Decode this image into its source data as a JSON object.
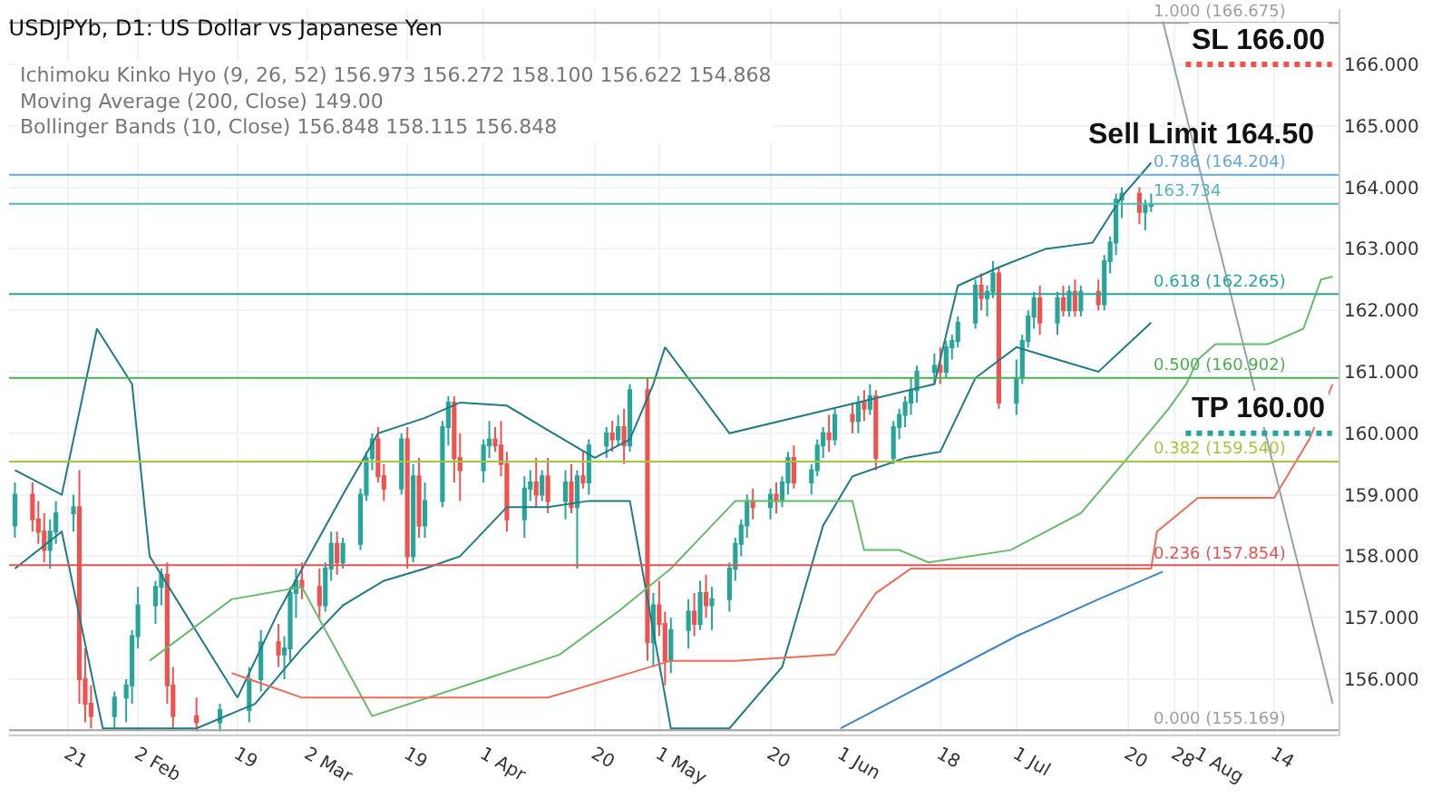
{
  "chart_data": {
    "type": "candlestick",
    "title": "USDJPYb, D1: US Dollar vs Japanese Yen",
    "subtitle": "Ichimoku Kinko Hyo (9, 26, 52) 156.973 156.272 158.100 156.622 154.868\nMoving Average (200, Close) 149.00\nBollinger Bands (10, Close) 156.848 158.115 156.848",
    "annotations": [
      "Sell Limit 164.50"
    ],
    "xlim": [
      "--01-11",
      "--08-25"
    ],
    "xticks": [
      {
        "value": "--01-21",
        "label": "21"
      },
      {
        "value": "--02-02",
        "label": "2 Feb"
      },
      {
        "value": "--02-19",
        "label": "19"
      },
      {
        "value": "--03-02",
        "label": "2 Mar"
      },
      {
        "value": "--03-19",
        "label": "19"
      },
      {
        "value": "--04-01",
        "label": "1 Apr"
      },
      {
        "value": "--04-20",
        "label": "20"
      },
      {
        "value": "--05-01",
        "label": "1 May"
      },
      {
        "value": "--05-20",
        "label": "20"
      },
      {
        "value": "--06-01",
        "label": "1 Jun"
      },
      {
        "value": "--06-18",
        "label": "18"
      },
      {
        "value": "--07-01",
        "label": "1 Jul"
      },
      {
        "value": "--07-20",
        "label": "20"
      },
      {
        "value": "--07-28",
        "label": "28"
      },
      {
        "value": "--08-01",
        "label": "1 Aug"
      },
      {
        "value": "--08-14",
        "label": "14"
      }
    ],
    "ylim": [
      155.1,
      166.9
    ],
    "yticks": [
      {
        "value": 156,
        "label": "156.000"
      },
      {
        "value": 157,
        "label": "157.000"
      },
      {
        "value": 158,
        "label": "158.000"
      },
      {
        "value": 159,
        "label": "159.000"
      },
      {
        "value": 160,
        "label": "160.000"
      },
      {
        "value": 161,
        "label": "161.000"
      },
      {
        "value": 162,
        "label": "162.000"
      },
      {
        "value": 163,
        "label": "163.000"
      },
      {
        "value": 164,
        "label": "164.000"
      },
      {
        "value": 165,
        "label": "165.000"
      },
      {
        "value": 166,
        "label": "166.000"
      }
    ],
    "grid": true,
    "ref_lines": [
      {
        "axis": "y",
        "value": 166.675,
        "label": "1.000 (166.675)",
        "color": "#9e9e9e"
      },
      {
        "axis": "y",
        "value": 164.204,
        "label": "0.786 (164.204)",
        "color": "#64a8d8"
      },
      {
        "axis": "y",
        "value": 162.265,
        "label": "0.618 (162.265)",
        "color": "#26a69a"
      },
      {
        "axis": "y",
        "value": 160.902,
        "label": "0.500 (160.902)",
        "color": "#4caf50"
      },
      {
        "axis": "y",
        "value": 159.54,
        "label": "0.382 (159.540)",
        "color": "#a5c63b"
      },
      {
        "axis": "y",
        "value": 157.854,
        "label": "0.236 (157.854)",
        "color": "#e05555"
      },
      {
        "axis": "y",
        "value": 155.169,
        "label": "0.000 (155.169)",
        "color": "#9e9e9e"
      },
      {
        "axis": "y",
        "value": 163.734,
        "label": "163.734",
        "color": "#4fb8b0"
      },
      {
        "axis": "y",
        "value": 166.0,
        "label": "SL 166.00",
        "color": "#ef5350",
        "line_style": "dotted"
      },
      {
        "axis": "y",
        "value": 160.0,
        "label": "TP 160.00",
        "color": "#26a69a",
        "line_style": "dotted"
      }
    ],
    "series": [
      {
        "type": "line",
        "color": "#1e7b84",
        "x": [
          "--01-12",
          "--01-20",
          "--01-26",
          "--02-01",
          "--02-04",
          "--02-19",
          "--02-26",
          "--03-08",
          "--03-14",
          "--03-22",
          "--03-28",
          "--04-05",
          "--04-12",
          "--04-20",
          "--04-26",
          "--04-30",
          "--05-02",
          "--05-13",
          "--06-17",
          "--06-21",
          "--06-28",
          "--07-06",
          "--07-14",
          "--07-19",
          "--07-24"
        ],
        "values": [
          159.4,
          159.0,
          161.7,
          160.8,
          158.0,
          155.7,
          157.1,
          159.0,
          160.0,
          160.25,
          160.5,
          160.45,
          160.05,
          159.6,
          159.9,
          160.8,
          161.4,
          160.0,
          160.8,
          162.4,
          162.7,
          163.0,
          163.1,
          163.85,
          164.4
        ]
      },
      {
        "type": "line",
        "color": "#1e7b84",
        "x": [
          "--01-12",
          "--01-20",
          "--01-27",
          "--02-12",
          "--02-22",
          "--03-01",
          "--03-08",
          "--03-15",
          "--03-22",
          "--03-28",
          "--04-05",
          "--04-12",
          "--04-19",
          "--04-26",
          "--05-03",
          "--05-13",
          "--05-22",
          "--05-29",
          "--06-03",
          "--06-12",
          "--06-18",
          "--06-24",
          "--07-01",
          "--07-08",
          "--07-15",
          "--07-24"
        ],
        "values": [
          157.8,
          158.4,
          155.2,
          155.2,
          155.6,
          156.5,
          157.2,
          157.6,
          157.8,
          158.0,
          158.8,
          158.8,
          158.9,
          158.9,
          155.2,
          155.2,
          156.2,
          158.5,
          159.3,
          159.6,
          159.7,
          160.9,
          161.4,
          161.2,
          161.0,
          161.8
        ]
      },
      {
        "type": "line",
        "color": "#66bb6a",
        "x": [
          "--02-04",
          "--02-18",
          "--03-01",
          "--03-13",
          "--04-14",
          "--04-24",
          "--05-03",
          "--05-14",
          "--06-03",
          "--06-05",
          "--06-11",
          "--06-16",
          "--06-30",
          "--07-12",
          "--07-20",
          "--07-27",
          "--07-30",
          "--08-01",
          "--08-04",
          "--08-13",
          "--08-19",
          "--08-22",
          "--08-24"
        ],
        "values": [
          156.3,
          157.3,
          157.5,
          155.4,
          156.4,
          157.1,
          157.8,
          158.9,
          158.9,
          158.1,
          158.1,
          157.9,
          158.1,
          158.7,
          159.6,
          160.4,
          160.8,
          161.2,
          161.45,
          161.45,
          161.7,
          162.5,
          162.55
        ]
      },
      {
        "type": "line",
        "color": "#ef6c5a",
        "x": [
          "--02-18",
          "--03-01",
          "--04-12",
          "--05-03",
          "--05-14",
          "--05-31",
          "--06-07",
          "--06-13",
          "--07-24",
          "--07-25",
          "--08-01",
          "--08-14",
          "--08-20",
          "--08-24"
        ],
        "values": [
          156.1,
          155.7,
          155.7,
          156.3,
          156.3,
          156.4,
          157.4,
          157.8,
          157.8,
          158.4,
          158.95,
          158.95,
          159.9,
          160.8
        ]
      },
      {
        "type": "line",
        "color": "#3d85c6",
        "x": [
          "--06-01",
          "--06-15",
          "--07-01",
          "--07-15",
          "--07-26"
        ],
        "values": [
          155.2,
          155.9,
          156.7,
          157.3,
          157.75
        ]
      },
      {
        "type": "line",
        "color": "#90a4ae",
        "x": [
          "--07-26",
          "--08-24"
        ],
        "values": [
          166.7,
          155.6
        ]
      },
      {
        "colors": [
          "#26a69a",
          "#ef5350",
          "#ef5350",
          "#ef5350",
          "#26a69a",
          "#26a69a",
          "#26a69a",
          "#ef5350",
          "#ef5350",
          "#ef5350",
          "#26a69a",
          "#26a69a",
          "#26a69a",
          "#26a69a",
          "#26a69a",
          "#26a69a",
          "#ef5350",
          "#ef5350",
          "#ef5350",
          "#26a69a",
          "#26a69a",
          "#26a69a",
          "#ef5350",
          "#26a69a",
          "#26a69a",
          "#26a69a",
          "#ef5350",
          "#ef5350",
          "#26a69a",
          "#26a69a",
          "#ef5350",
          "#26a69a",
          "#26a69a",
          "#26a69a",
          "#26a69a",
          "#ef5350",
          "#ef5350",
          "#26a69a",
          "#ef5350",
          "#26a69a",
          "#ef5350",
          "#26a69a",
          "#26a69a",
          "#26a69a",
          "#ef5350",
          "#ef5350",
          "#26a69a",
          "#26a69a",
          "#ef5350",
          "#ef5350",
          "#ef5350",
          "#26a69a",
          "#26a69a",
          "#ef5350",
          "#26a69a",
          "#ef5350",
          "#26a69a",
          "#ef5350",
          "#26a69a",
          "#ef5350",
          "#26a69a",
          "#26a69a",
          "#ef5350",
          "#26a69a",
          "#ef5350",
          "#26a69a",
          "#ef5350",
          "#26a69a",
          "#ef5350",
          "#ef5350",
          "#26a69a",
          "#26a69a",
          "#ef5350",
          "#26a69a",
          "#ef5350",
          "#26a69a",
          "#26a69a",
          "#26a69a",
          "#26a69a",
          "#26a69a",
          "#ef5350",
          "#26a69a",
          "#ef5350",
          "#26a69a",
          "#26a69a",
          "#ef5350",
          "#26a69a",
          "#26a69a",
          "#26a69a",
          "#ef5350",
          "#26a69a",
          "#ef5350",
          "#26a69a",
          "#ef5350",
          "#26a69a",
          "#ef5350",
          "#26a69a",
          "#26a69a",
          "#26a69a",
          "#26a69a",
          "#26a69a",
          "#26a69a",
          "#ef5350",
          "#26a69a",
          "#26a69a",
          "#26a69a",
          "#26a69a",
          "#ef5350",
          "#26a69a",
          "#26a69a",
          "#ef5350",
          "#26a69a",
          "#26a69a",
          "#26a69a",
          "#26a69a",
          "#ef5350",
          "#26a69a",
          "#ef5350",
          "#26a69a",
          "#ef5350",
          "#26a69a",
          "#ef5350",
          "#26a69a",
          "#26a69a",
          "#26a69a",
          "#26a69a",
          "#ef5350",
          "#26a69a",
          "#26a69a"
        ],
        "x": [
          "--01-12",
          "--01-15",
          "--01-16",
          "--01-17",
          "--01-18",
          "--01-19",
          "--01-22",
          "--01-23",
          "--01-24",
          "--01-25",
          "--01-29",
          "--01-31",
          "--02-01",
          "--02-02",
          "--02-05",
          "--02-06",
          "--02-07",
          "--02-08",
          "--02-12",
          "--02-16",
          "--02-21",
          "--02-23",
          "--02-26",
          "--02-27",
          "--02-28",
          "--02-29",
          "--03-01",
          "--03-04",
          "--03-05",
          "--03-06",
          "--03-07",
          "--03-08",
          "--03-11",
          "--03-12",
          "--03-13",
          "--03-14",
          "--03-15",
          "--03-18",
          "--03-19",
          "--03-20",
          "--03-21",
          "--03-22",
          "--03-25",
          "--03-26",
          "--03-27",
          "--03-28",
          "--04-01",
          "--04-02",
          "--04-03",
          "--04-04",
          "--04-05",
          "--04-08",
          "--04-09",
          "--04-10",
          "--04-11",
          "--04-12",
          "--04-15",
          "--04-16",
          "--04-17",
          "--04-18",
          "--04-19",
          "--04-22",
          "--04-23",
          "--04-24",
          "--04-25",
          "--04-26",
          "--04-29",
          "--04-30",
          "--05-01",
          "--05-02",
          "--05-03",
          "--05-06",
          "--05-07",
          "--05-08",
          "--05-09",
          "--05-10",
          "--05-13",
          "--05-14",
          "--05-15",
          "--05-16",
          "--05-17",
          "--05-20",
          "--05-21",
          "--05-22",
          "--05-23",
          "--05-24",
          "--05-27",
          "--05-28",
          "--05-29",
          "--05-30",
          "--05-31",
          "--06-03",
          "--06-04",
          "--06-05",
          "--06-06",
          "--06-07",
          "--06-10",
          "--06-11",
          "--06-12",
          "--06-13",
          "--06-14",
          "--06-17",
          "--06-18",
          "--06-19",
          "--06-20",
          "--06-21",
          "--06-24",
          "--06-25",
          "--06-26",
          "--06-27",
          "--06-28",
          "--07-01",
          "--07-02",
          "--07-03",
          "--07-04",
          "--07-05",
          "--07-08",
          "--07-09",
          "--07-10",
          "--07-11",
          "--07-12",
          "--07-15",
          "--07-16",
          "--07-17",
          "--07-18",
          "--07-19",
          "--07-22",
          "--07-23",
          "--07-24"
        ],
        "ohlc": [
          [
            158.5,
            159.2,
            158.3,
            159.0
          ],
          [
            159.0,
            159.2,
            158.4,
            158.6
          ],
          [
            158.6,
            158.9,
            158.2,
            158.4
          ],
          [
            158.4,
            158.7,
            157.9,
            158.1
          ],
          [
            158.1,
            158.6,
            157.8,
            158.4
          ],
          [
            158.4,
            158.9,
            158.2,
            158.7
          ],
          [
            158.7,
            159.0,
            158.4,
            158.8
          ],
          [
            158.8,
            159.4,
            155.6,
            156.0
          ],
          [
            156.0,
            156.5,
            155.3,
            155.6
          ],
          [
            155.6,
            155.9,
            155.2,
            155.4
          ],
          [
            155.4,
            155.8,
            155.2,
            155.7
          ],
          [
            155.7,
            156.0,
            155.3,
            155.9
          ],
          [
            155.9,
            156.8,
            155.6,
            156.7
          ],
          [
            156.7,
            157.5,
            156.5,
            157.2
          ],
          [
            157.2,
            157.6,
            156.9,
            157.5
          ],
          [
            157.5,
            157.8,
            157.2,
            157.7
          ],
          [
            157.7,
            157.9,
            155.6,
            155.9
          ],
          [
            155.9,
            156.2,
            155.2,
            155.4
          ],
          [
            155.4,
            155.7,
            155.15,
            155.3
          ],
          [
            155.3,
            155.6,
            155.15,
            155.5
          ],
          [
            155.5,
            156.2,
            155.3,
            156.0
          ],
          [
            156.0,
            156.8,
            155.8,
            156.6
          ],
          [
            156.6,
            156.9,
            156.2,
            156.4
          ],
          [
            156.4,
            156.7,
            156.0,
            156.5
          ],
          [
            156.5,
            157.5,
            156.3,
            157.4
          ],
          [
            157.4,
            157.8,
            157.0,
            157.6
          ],
          [
            157.6,
            157.9,
            157.3,
            157.5
          ],
          [
            157.5,
            157.8,
            157.0,
            157.2
          ],
          [
            157.2,
            157.9,
            157.1,
            157.8
          ],
          [
            157.8,
            158.4,
            157.6,
            158.2
          ],
          [
            158.2,
            158.4,
            157.7,
            157.9
          ],
          [
            157.9,
            158.3,
            157.8,
            158.2
          ],
          [
            158.2,
            159.1,
            158.1,
            159.0
          ],
          [
            159.0,
            159.7,
            158.9,
            159.6
          ],
          [
            159.6,
            160.0,
            159.4,
            159.9
          ],
          [
            159.9,
            160.1,
            159.2,
            159.3
          ],
          [
            159.3,
            159.5,
            158.9,
            159.1
          ],
          [
            159.1,
            160.0,
            159.0,
            159.9
          ],
          [
            159.9,
            160.1,
            157.8,
            158.0
          ],
          [
            158.0,
            159.5,
            157.9,
            159.3
          ],
          [
            159.3,
            159.6,
            158.3,
            158.5
          ],
          [
            158.5,
            159.2,
            158.3,
            158.9
          ],
          [
            158.9,
            160.2,
            158.8,
            160.1
          ],
          [
            160.1,
            160.6,
            159.8,
            160.5
          ],
          [
            160.5,
            160.6,
            159.2,
            159.6
          ],
          [
            159.6,
            160.0,
            158.9,
            159.4
          ],
          [
            159.4,
            159.9,
            159.2,
            159.8
          ],
          [
            159.8,
            160.2,
            159.6,
            159.9
          ],
          [
            159.9,
            160.1,
            159.7,
            159.8
          ],
          [
            159.8,
            160.2,
            159.3,
            159.5
          ],
          [
            159.5,
            159.7,
            158.4,
            158.6
          ],
          [
            158.6,
            159.3,
            158.3,
            159.1
          ],
          [
            159.1,
            159.4,
            158.9,
            159.2
          ],
          [
            159.2,
            159.6,
            158.8,
            159.0
          ],
          [
            159.0,
            159.4,
            158.9,
            159.3
          ],
          [
            159.3,
            159.6,
            158.7,
            158.9
          ],
          [
            158.9,
            159.4,
            158.6,
            159.2
          ],
          [
            159.2,
            159.5,
            158.7,
            158.8
          ],
          [
            158.8,
            159.4,
            157.8,
            159.3
          ],
          [
            159.3,
            159.7,
            159.1,
            159.2
          ],
          [
            159.2,
            159.9,
            159.0,
            159.8
          ],
          [
            159.8,
            160.1,
            159.6,
            160.0
          ],
          [
            160.0,
            160.2,
            159.7,
            159.9
          ],
          [
            159.9,
            160.3,
            159.8,
            160.1
          ],
          [
            160.1,
            160.4,
            159.5,
            159.8
          ],
          [
            159.8,
            160.8,
            159.7,
            160.7
          ],
          [
            160.7,
            160.9,
            156.3,
            156.6
          ],
          [
            156.6,
            157.4,
            156.2,
            157.2
          ],
          [
            157.2,
            157.6,
            156.7,
            156.9
          ],
          [
            156.9,
            157.1,
            155.9,
            156.3
          ],
          [
            156.3,
            157.0,
            156.1,
            156.8
          ],
          [
            156.8,
            157.3,
            156.5,
            157.1
          ],
          [
            157.1,
            157.4,
            156.7,
            156.9
          ],
          [
            156.9,
            157.6,
            156.8,
            157.4
          ],
          [
            157.4,
            157.7,
            157.0,
            157.2
          ],
          [
            157.2,
            157.5,
            156.8,
            157.3
          ],
          [
            157.3,
            157.9,
            157.1,
            157.8
          ],
          [
            157.8,
            158.3,
            157.6,
            158.2
          ],
          [
            158.2,
            158.6,
            158.0,
            158.5
          ],
          [
            158.5,
            159.0,
            158.3,
            158.9
          ],
          [
            158.9,
            159.1,
            158.6,
            158.8
          ],
          [
            158.8,
            159.1,
            158.6,
            159.0
          ],
          [
            159.0,
            159.2,
            158.7,
            158.9
          ],
          [
            158.9,
            159.3,
            158.8,
            159.2
          ],
          [
            159.2,
            159.7,
            159.0,
            159.6
          ],
          [
            159.6,
            159.8,
            159.1,
            159.2
          ],
          [
            159.2,
            159.5,
            159.0,
            159.4
          ],
          [
            159.4,
            159.9,
            159.3,
            159.8
          ],
          [
            159.8,
            160.1,
            159.6,
            160.0
          ],
          [
            160.0,
            160.3,
            159.7,
            159.9
          ],
          [
            159.9,
            160.4,
            159.8,
            160.3
          ],
          [
            160.3,
            160.5,
            160.0,
            160.2
          ],
          [
            160.2,
            160.6,
            160.0,
            160.5
          ],
          [
            160.5,
            160.7,
            160.2,
            160.4
          ],
          [
            160.4,
            160.8,
            160.3,
            160.6
          ],
          [
            160.6,
            160.7,
            159.4,
            159.6
          ],
          [
            159.6,
            160.2,
            159.5,
            160.1
          ],
          [
            160.1,
            160.4,
            159.9,
            160.3
          ],
          [
            160.3,
            160.6,
            160.1,
            160.5
          ],
          [
            160.5,
            160.9,
            160.3,
            160.7
          ],
          [
            160.7,
            161.1,
            160.5,
            161.0
          ],
          [
            161.0,
            161.3,
            160.8,
            161.1
          ],
          [
            161.1,
            161.4,
            160.8,
            161.0
          ],
          [
            161.0,
            161.5,
            160.9,
            161.4
          ],
          [
            161.4,
            161.6,
            161.2,
            161.5
          ],
          [
            161.5,
            161.9,
            161.4,
            161.8
          ],
          [
            161.8,
            162.5,
            161.7,
            162.4
          ],
          [
            162.4,
            162.6,
            162.0,
            162.2
          ],
          [
            162.2,
            162.4,
            161.9,
            162.3
          ],
          [
            162.3,
            162.8,
            162.2,
            162.6
          ],
          [
            162.6,
            162.7,
            160.4,
            160.5
          ],
          [
            160.5,
            161.2,
            160.3,
            160.9
          ],
          [
            160.9,
            161.6,
            160.8,
            161.5
          ],
          [
            161.5,
            162.0,
            161.4,
            161.9
          ],
          [
            161.9,
            162.3,
            161.7,
            162.2
          ],
          [
            162.2,
            162.4,
            161.6,
            161.8
          ],
          [
            161.8,
            162.3,
            161.6,
            162.2
          ],
          [
            162.2,
            162.4,
            161.9,
            162.0
          ],
          [
            162.0,
            162.4,
            161.9,
            162.3
          ],
          [
            162.3,
            162.5,
            161.9,
            162.0
          ],
          [
            162.0,
            162.4,
            161.9,
            162.3
          ],
          [
            162.3,
            162.5,
            162.0,
            162.1
          ],
          [
            162.1,
            162.9,
            162.0,
            162.8
          ],
          [
            162.8,
            163.2,
            162.6,
            163.1
          ],
          [
            163.1,
            163.9,
            162.9,
            163.8
          ],
          [
            163.8,
            164.0,
            163.5,
            163.9
          ],
          [
            163.9,
            164.0,
            163.4,
            163.6
          ],
          [
            163.6,
            163.8,
            163.3,
            163.7
          ],
          [
            163.7,
            163.9,
            163.6,
            163.73
          ]
        ]
      }
    ]
  }
}
